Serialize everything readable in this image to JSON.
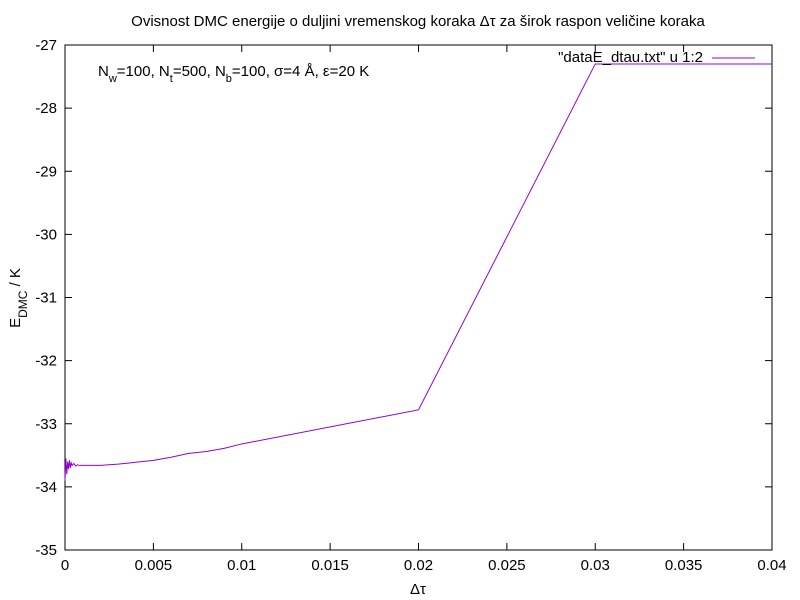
{
  "chart_data": {
    "type": "line",
    "title": "Ovisnost DMC energije o duljini vremenskog koraka Δτ za širok raspon veličine koraka",
    "xlabel": "Δτ",
    "ylabel": {
      "main": "E",
      "sub": "DMC",
      "rest": " / K"
    },
    "annotation": {
      "parts": [
        {
          "t": "N",
          "sub": false
        },
        {
          "t": "w",
          "sub": true
        },
        {
          "t": "=100, N",
          "sub": false
        },
        {
          "t": "t",
          "sub": true
        },
        {
          "t": "=500, N",
          "sub": false
        },
        {
          "t": "b",
          "sub": true
        },
        {
          "t": "=100, σ=4 Å, ε=20 K",
          "sub": false
        }
      ]
    },
    "xlim": [
      0,
      0.04
    ],
    "ylim": [
      -35,
      -27
    ],
    "xticks": [
      0,
      0.005,
      0.01,
      0.015,
      0.02,
      0.025,
      0.03,
      0.035,
      0.04
    ],
    "xtick_labels": [
      "0",
      "0.005",
      "0.01",
      "0.015",
      "0.02",
      "0.025",
      "0.03",
      "0.035",
      "0.04"
    ],
    "yticks": [
      -35,
      -34,
      -33,
      -32,
      -31,
      -30,
      -29,
      -28,
      -27
    ],
    "ytick_labels": [
      "-35",
      "-34",
      "-33",
      "-32",
      "-31",
      "-30",
      "-29",
      "-28",
      "-27"
    ],
    "grid": false,
    "legend_position": "top-right",
    "series": [
      {
        "name": "\"dataE_dtau.txt\" u 1:2",
        "color": "#9400d3",
        "x": [
          0,
          5e-05,
          0.0001,
          0.00015,
          0.0002,
          0.00025,
          0.0003,
          0.00035,
          0.0004,
          0.0005,
          0.0006,
          0.0007,
          0.0008,
          0.001,
          0.002,
          0.003,
          0.004,
          0.005,
          0.006,
          0.007,
          0.008,
          0.009,
          0.01,
          0.02,
          0.03,
          0.04
        ],
        "y": [
          -33.9,
          -33.55,
          -33.8,
          -33.6,
          -33.72,
          -33.58,
          -33.7,
          -33.62,
          -33.66,
          -33.63,
          -33.67,
          -33.65,
          -33.66,
          -33.66,
          -33.66,
          -33.64,
          -33.61,
          -33.58,
          -33.53,
          -33.47,
          -33.44,
          -33.39,
          -33.32,
          -32.78,
          -27.3,
          -27.3
        ]
      }
    ]
  }
}
